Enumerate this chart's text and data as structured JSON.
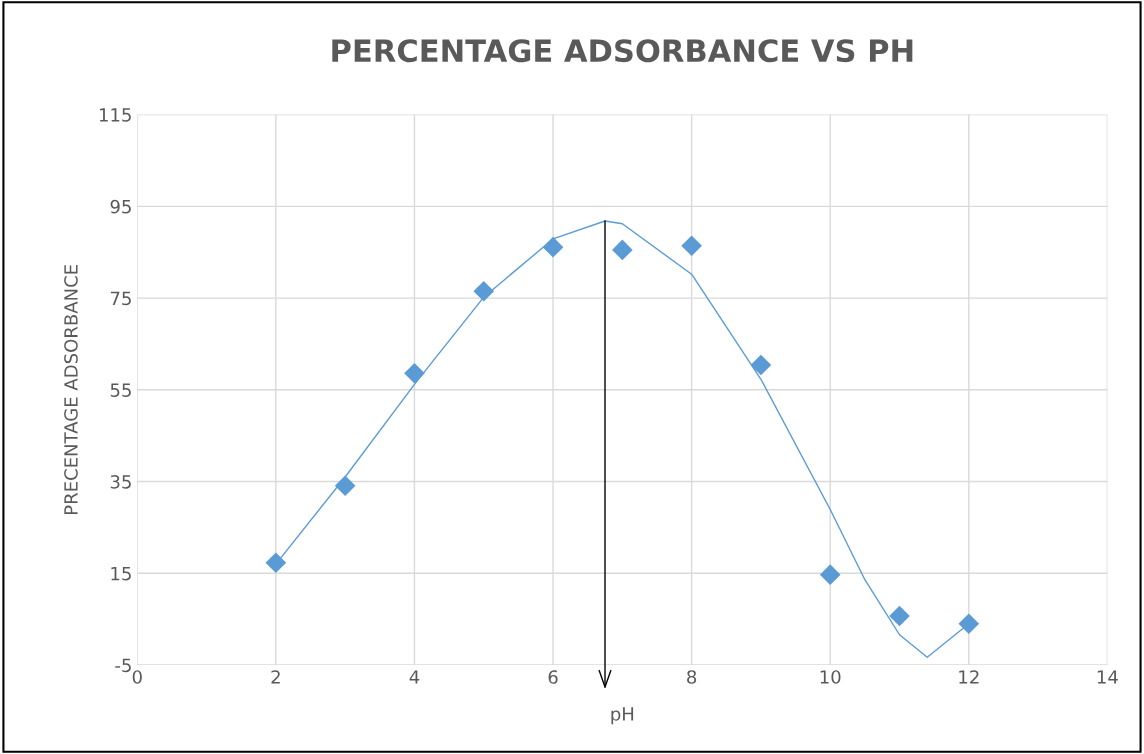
{
  "chart_data": {
    "type": "scatter",
    "title": "PERCENTAGE ADSORBANCE VS PH",
    "xlabel": "pH",
    "ylabel": "PRECENTAGE ADSORBANCE",
    "series": [
      {
        "color": "#5b9bd5",
        "marker": "diamond",
        "x": [
          2,
          3,
          4,
          5,
          6,
          7,
          8,
          9,
          10,
          11,
          12
        ],
        "values": [
          17.3,
          34.1,
          58.6,
          76.5,
          86.1,
          85.5,
          86.4,
          60.4,
          14.7,
          5.7,
          4.0
        ]
      },
      {
        "type": "line",
        "color": "#5b9bd5",
        "marker": "none",
        "x": [
          2,
          3,
          4,
          5,
          6,
          6.75,
          7,
          8,
          9,
          10,
          10.5,
          11,
          11.4,
          12
        ],
        "values": [
          17,
          36,
          56.2,
          75.2,
          87.9,
          91.8,
          91.2,
          80.2,
          57.3,
          28.9,
          13.6,
          1.6,
          -3.3,
          4
        ]
      }
    ],
    "ref_lines": [
      {
        "axis": "x",
        "value": 6.75,
        "color": "#000000"
      }
    ],
    "xlim": [
      0,
      14
    ],
    "xticks": [
      0,
      2,
      4,
      6,
      8,
      10,
      12,
      14
    ],
    "ylim": [
      -5,
      115
    ],
    "yticks": [
      -5,
      15,
      35,
      55,
      75,
      95,
      115
    ],
    "grid": true
  }
}
